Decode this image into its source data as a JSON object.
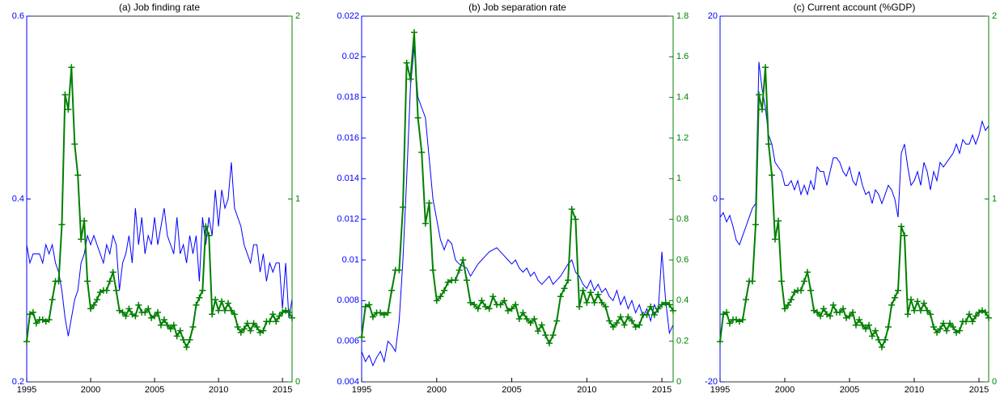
{
  "chart_data": [
    {
      "type": "line",
      "title": "(a) Job finding rate",
      "x": [
        1995,
        1995.25,
        1995.5,
        1995.75,
        1996,
        1996.25,
        1996.5,
        1996.75,
        1997,
        1997.25,
        1997.5,
        1997.75,
        1998,
        1998.25,
        1998.5,
        1998.75,
        1999,
        1999.25,
        1999.5,
        1999.75,
        2000,
        2000.25,
        2000.5,
        2000.75,
        2001,
        2001.25,
        2001.5,
        2001.75,
        2002,
        2002.25,
        2002.5,
        2002.75,
        2003,
        2003.25,
        2003.5,
        2003.75,
        2004,
        2004.25,
        2004.5,
        2004.75,
        2005,
        2005.25,
        2005.5,
        2005.75,
        2006,
        2006.25,
        2006.5,
        2006.75,
        2007,
        2007.25,
        2007.5,
        2007.75,
        2008,
        2008.25,
        2008.5,
        2008.75,
        2009,
        2009.25,
        2009.5,
        2009.75,
        2010,
        2010.25,
        2010.5,
        2010.75,
        2011,
        2011.25,
        2011.5,
        2011.75,
        2012,
        2012.25,
        2012.5,
        2012.75,
        2013,
        2013.25,
        2013.5,
        2013.75,
        2014,
        2014.25,
        2014.5,
        2014.75,
        2015,
        2015.25,
        2015.5,
        2015.75
      ],
      "xlim": [
        1995,
        2015.75
      ],
      "xticks": [
        1995,
        2000,
        2005,
        2010,
        2015
      ],
      "ylim": [
        0.2,
        0.6
      ],
      "yticks": [
        0.2,
        0.4,
        0.6
      ],
      "y2lim": [
        0,
        2
      ],
      "y2ticks": [
        0,
        1,
        2
      ],
      "series": [
        {
          "color": "#0000ff",
          "axis": "y",
          "values": [
            0.35,
            0.33,
            0.34,
            0.34,
            0.34,
            0.33,
            0.35,
            0.34,
            0.35,
            0.33,
            0.32,
            0.3,
            0.27,
            0.25,
            0.27,
            0.29,
            0.3,
            0.33,
            0.34,
            0.36,
            0.35,
            0.36,
            0.35,
            0.34,
            0.33,
            0.35,
            0.34,
            0.36,
            0.35,
            0.3,
            0.33,
            0.34,
            0.36,
            0.33,
            0.39,
            0.35,
            0.38,
            0.34,
            0.36,
            0.35,
            0.38,
            0.35,
            0.37,
            0.39,
            0.36,
            0.35,
            0.34,
            0.38,
            0.34,
            0.35,
            0.33,
            0.36,
            0.34,
            0.36,
            0.31,
            0.38,
            0.35,
            0.38,
            0.36,
            0.41,
            0.37,
            0.41,
            0.39,
            0.4,
            0.44,
            0.39,
            0.38,
            0.37,
            0.35,
            0.34,
            0.33,
            0.35,
            0.35,
            0.32,
            0.34,
            0.31,
            0.33,
            0.32,
            0.33,
            0.33,
            0.28,
            0.33,
            0.27,
            0.29
          ]
        },
        {
          "color": "#008000",
          "axis": "y2",
          "marker": "+",
          "values": [
            0.22,
            0.37,
            0.38,
            0.32,
            0.34,
            0.34,
            0.33,
            0.34,
            0.45,
            0.55,
            0.55,
            0.86,
            1.57,
            1.49,
            1.72,
            1.3,
            1.13,
            0.78,
            0.88,
            0.55,
            0.4,
            0.42,
            0.45,
            0.49,
            0.5,
            0.5,
            0.55,
            0.6,
            0.5,
            0.39,
            0.38,
            0.36,
            0.4,
            0.37,
            0.36,
            0.42,
            0.38,
            0.38,
            0.4,
            0.35,
            0.36,
            0.38,
            0.31,
            0.34,
            0.31,
            0.29,
            0.31,
            0.25,
            0.28,
            0.23,
            0.19,
            0.23,
            0.3,
            0.42,
            0.46,
            0.5,
            0.85,
            0.8,
            0.37,
            0.45,
            0.39,
            0.44,
            0.39,
            0.43,
            0.39,
            0.37,
            0.3,
            0.27,
            0.29,
            0.32,
            0.28,
            0.32,
            0.3,
            0.27,
            0.28,
            0.33,
            0.33,
            0.37,
            0.33,
            0.36,
            0.38,
            0.39,
            0.38,
            0.35
          ]
        }
      ]
    },
    {
      "type": "line",
      "title": "(b) Job separation rate",
      "x": [
        1995,
        1995.25,
        1995.5,
        1995.75,
        1996,
        1996.25,
        1996.5,
        1996.75,
        1997,
        1997.25,
        1997.5,
        1997.75,
        1998,
        1998.25,
        1998.5,
        1998.75,
        1999,
        1999.25,
        1999.5,
        1999.75,
        2000,
        2000.25,
        2000.5,
        2000.75,
        2001,
        2001.25,
        2001.5,
        2001.75,
        2002,
        2002.25,
        2002.5,
        2002.75,
        2003,
        2003.25,
        2003.5,
        2003.75,
        2004,
        2004.25,
        2004.5,
        2004.75,
        2005,
        2005.25,
        2005.5,
        2005.75,
        2006,
        2006.25,
        2006.5,
        2006.75,
        2007,
        2007.25,
        2007.5,
        2007.75,
        2008,
        2008.25,
        2008.5,
        2008.75,
        2009,
        2009.25,
        2009.5,
        2009.75,
        2010,
        2010.25,
        2010.5,
        2010.75,
        2011,
        2011.25,
        2011.5,
        2011.75,
        2012,
        2012.25,
        2012.5,
        2012.75,
        2013,
        2013.25,
        2013.5,
        2013.75,
        2014,
        2014.25,
        2014.5,
        2014.75,
        2015,
        2015.25,
        2015.5,
        2015.75
      ],
      "xlim": [
        1995,
        2015.75
      ],
      "xticks": [
        1995,
        2000,
        2005,
        2010,
        2015
      ],
      "ylim": [
        0.004,
        0.022
      ],
      "yticks": [
        0.004,
        0.006,
        0.008,
        0.01,
        0.012,
        0.014,
        0.016,
        0.018,
        0.02,
        0.022
      ],
      "y2lim": [
        0,
        1.8
      ],
      "y2ticks": [
        0,
        0.2,
        0.4,
        0.6,
        0.8,
        1,
        1.2,
        1.4,
        1.6,
        1.8
      ],
      "series": [
        {
          "color": "#0000ff",
          "axis": "y",
          "values": [
            0.0055,
            0.005,
            0.0053,
            0.0048,
            0.0052,
            0.0055,
            0.005,
            0.006,
            0.0058,
            0.0055,
            0.007,
            0.01,
            0.014,
            0.0185,
            0.0205,
            0.018,
            0.0175,
            0.017,
            0.015,
            0.013,
            0.012,
            0.011,
            0.0105,
            0.011,
            0.0108,
            0.01,
            0.0098,
            0.0097,
            0.0096,
            0.0092,
            0.0095,
            0.0098,
            0.01,
            0.0102,
            0.0104,
            0.0105,
            0.0106,
            0.0104,
            0.0102,
            0.01,
            0.0098,
            0.01,
            0.0096,
            0.0094,
            0.0096,
            0.0092,
            0.0094,
            0.009,
            0.0088,
            0.009,
            0.0092,
            0.0088,
            0.009,
            0.0092,
            0.0095,
            0.0098,
            0.01,
            0.0094,
            0.0092,
            0.0088,
            0.0086,
            0.009,
            0.0085,
            0.0088,
            0.0084,
            0.0086,
            0.0082,
            0.008,
            0.0085,
            0.0078,
            0.0082,
            0.0076,
            0.008,
            0.0074,
            0.0078,
            0.0072,
            0.0076,
            0.007,
            0.0078,
            0.0074,
            0.0104,
            0.008,
            0.0064,
            0.0068
          ]
        },
        {
          "color": "#008000",
          "axis": "y2",
          "marker": "+",
          "values": [
            0.22,
            0.37,
            0.38,
            0.32,
            0.34,
            0.34,
            0.33,
            0.34,
            0.45,
            0.55,
            0.55,
            0.86,
            1.57,
            1.49,
            1.72,
            1.3,
            1.13,
            0.78,
            0.88,
            0.55,
            0.4,
            0.42,
            0.45,
            0.49,
            0.5,
            0.5,
            0.55,
            0.6,
            0.5,
            0.39,
            0.38,
            0.36,
            0.4,
            0.37,
            0.36,
            0.42,
            0.38,
            0.38,
            0.4,
            0.35,
            0.36,
            0.38,
            0.31,
            0.34,
            0.31,
            0.29,
            0.31,
            0.25,
            0.28,
            0.23,
            0.19,
            0.23,
            0.3,
            0.42,
            0.46,
            0.5,
            0.85,
            0.8,
            0.37,
            0.45,
            0.39,
            0.44,
            0.39,
            0.43,
            0.39,
            0.37,
            0.3,
            0.27,
            0.29,
            0.32,
            0.28,
            0.32,
            0.3,
            0.27,
            0.28,
            0.33,
            0.33,
            0.37,
            0.33,
            0.36,
            0.38,
            0.39,
            0.38,
            0.35
          ]
        }
      ]
    },
    {
      "type": "line",
      "title": "(c) Current account (%GDP)",
      "x": [
        1995,
        1995.25,
        1995.5,
        1995.75,
        1996,
        1996.25,
        1996.5,
        1996.75,
        1997,
        1997.25,
        1997.5,
        1997.75,
        1998,
        1998.25,
        1998.5,
        1998.75,
        1999,
        1999.25,
        1999.5,
        1999.75,
        2000,
        2000.25,
        2000.5,
        2000.75,
        2001,
        2001.25,
        2001.5,
        2001.75,
        2002,
        2002.25,
        2002.5,
        2002.75,
        2003,
        2003.25,
        2003.5,
        2003.75,
        2004,
        2004.25,
        2004.5,
        2004.75,
        2005,
        2005.25,
        2005.5,
        2005.75,
        2006,
        2006.25,
        2006.5,
        2006.75,
        2007,
        2007.25,
        2007.5,
        2007.75,
        2008,
        2008.25,
        2008.5,
        2008.75,
        2009,
        2009.25,
        2009.5,
        2009.75,
        2010,
        2010.25,
        2010.5,
        2010.75,
        2011,
        2011.25,
        2011.5,
        2011.75,
        2012,
        2012.25,
        2012.5,
        2012.75,
        2013,
        2013.25,
        2013.5,
        2013.75,
        2014,
        2014.25,
        2014.5,
        2014.75,
        2015,
        2015.25,
        2015.5,
        2015.75
      ],
      "xlim": [
        1995,
        2015.75
      ],
      "xticks": [
        1995,
        2000,
        2005,
        2010,
        2015
      ],
      "ylim": [
        -20,
        20
      ],
      "yticks": [
        -20,
        0,
        20
      ],
      "y2lim": [
        0,
        2
      ],
      "y2ticks": [
        0,
        1,
        2
      ],
      "series": [
        {
          "color": "#0000ff",
          "axis": "y",
          "values": [
            -2,
            -1.5,
            -2.5,
            -1.8,
            -3,
            -4.5,
            -5,
            -4,
            -3,
            -2,
            -1,
            -0.5,
            15,
            12,
            10,
            7,
            6,
            4,
            3.5,
            3,
            1.5,
            1.5,
            2,
            1,
            2,
            0.5,
            1.5,
            0.5,
            2,
            1,
            3.5,
            3,
            3,
            1.5,
            3,
            4.5,
            4.5,
            4,
            3,
            2.5,
            3.5,
            2,
            1.5,
            3,
            1.5,
            0.5,
            0.8,
            -0.5,
            1,
            0.5,
            -0.5,
            0.5,
            1.5,
            1,
            0,
            -2,
            5,
            6,
            3.5,
            1.5,
            2,
            3,
            1.5,
            4,
            3,
            1,
            3,
            2,
            4,
            3.5,
            4,
            4.5,
            5,
            6,
            5,
            6.5,
            6,
            6,
            7,
            6,
            7,
            8.5,
            7.5,
            8
          ]
        },
        {
          "color": "#008000",
          "axis": "y2",
          "marker": "+",
          "values": [
            0.22,
            0.37,
            0.38,
            0.32,
            0.34,
            0.34,
            0.33,
            0.34,
            0.45,
            0.55,
            0.55,
            0.86,
            1.57,
            1.49,
            1.72,
            1.3,
            1.13,
            0.78,
            0.88,
            0.55,
            0.4,
            0.42,
            0.45,
            0.49,
            0.5,
            0.5,
            0.55,
            0.6,
            0.5,
            0.39,
            0.38,
            0.36,
            0.4,
            0.37,
            0.36,
            0.42,
            0.38,
            0.38,
            0.4,
            0.35,
            0.36,
            0.38,
            0.31,
            0.34,
            0.31,
            0.29,
            0.31,
            0.25,
            0.28,
            0.23,
            0.19,
            0.23,
            0.3,
            0.42,
            0.46,
            0.5,
            0.85,
            0.8,
            0.37,
            0.45,
            0.39,
            0.44,
            0.39,
            0.43,
            0.39,
            0.37,
            0.3,
            0.27,
            0.29,
            0.32,
            0.28,
            0.32,
            0.3,
            0.27,
            0.28,
            0.33,
            0.33,
            0.37,
            0.33,
            0.36,
            0.38,
            0.39,
            0.38,
            0.35
          ]
        }
      ]
    }
  ]
}
